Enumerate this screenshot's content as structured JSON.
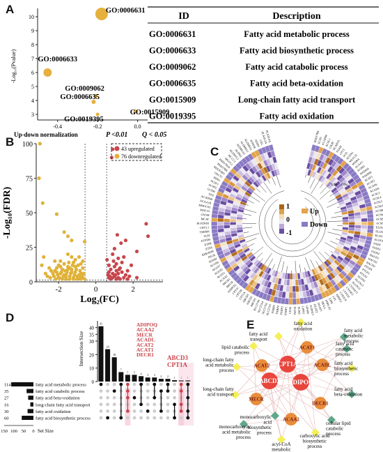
{
  "panels": {
    "A": "A",
    "B": "B",
    "C": "C",
    "D": "D",
    "E": "E"
  },
  "panel_a": {
    "ylabel": "-Log₁₀(Pvalue)",
    "xlabel": "Up-down normalization",
    "footnote_p": "P <0.01",
    "footnote_q": "Q < 0.05",
    "chart_data": {
      "type": "scatter",
      "xlim": [
        -0.5,
        0.05
      ],
      "ylim": [
        2.6,
        10.6
      ],
      "xticks": [
        "-0.4",
        "-0.2",
        "0.0"
      ],
      "yticks": [
        "3",
        "4",
        "5",
        "6",
        "7",
        "8",
        "9",
        "10"
      ],
      "points": [
        {
          "label": "GO:0006631",
          "x": -0.18,
          "y": 10.2,
          "size": 9
        },
        {
          "label": "GO:0006633",
          "x": -0.45,
          "y": 6.0,
          "size": 6
        },
        {
          "label": "GO:0009062",
          "x": -0.21,
          "y": 4.3,
          "size": 3
        },
        {
          "label": "GO:0006635",
          "x": -0.22,
          "y": 3.9,
          "size": 3
        },
        {
          "label": "GO:0019395",
          "x": -0.2,
          "y": 3.0,
          "size": 2.5
        },
        {
          "label": "GO:0015909",
          "x": -0.01,
          "y": 3.2,
          "size": 3
        }
      ]
    },
    "table": {
      "headers": [
        "ID",
        "Description"
      ],
      "rows": [
        [
          "GO:0006631",
          "Fatty acid metabolic process"
        ],
        [
          "GO:0006633",
          "Fatty acid biosynthetic process"
        ],
        [
          "GO:0009062",
          "Fatty acid catabolic process"
        ],
        [
          "GO:0006635",
          "Fatty acid beta-oxidation"
        ],
        [
          "GO:0015909",
          "Long-chain fatty acid transport"
        ],
        [
          "GO:0019395",
          "Fatty acid oxidation"
        ]
      ]
    }
  },
  "panel_b": {
    "chart_data": {
      "type": "scatter",
      "xlabel": "Log₂(FC)",
      "ylabel": "-Log₁₀(FDR)",
      "xlim": [
        -3.2,
        3.6
      ],
      "ylim": [
        0,
        100
      ],
      "xticks": [
        "-2",
        "0",
        "2"
      ],
      "yticks": [
        "0",
        "25",
        "50",
        "75",
        "100"
      ],
      "legend": [
        "43 upregulated",
        "76 downregulated"
      ],
      "colors": {
        "up": "#c8464d",
        "down": "#e0b23a"
      },
      "up_points": [
        [
          0.6,
          16
        ],
        [
          0.7,
          12
        ],
        [
          0.8,
          9
        ],
        [
          0.9,
          6
        ],
        [
          1.0,
          4
        ],
        [
          0.7,
          3
        ],
        [
          1.1,
          2
        ],
        [
          1.2,
          6
        ],
        [
          1.3,
          10
        ],
        [
          1.4,
          14
        ],
        [
          0.9,
          20
        ],
        [
          1.0,
          24
        ],
        [
          1.1,
          8
        ],
        [
          0.65,
          5
        ],
        [
          1.5,
          3
        ],
        [
          0.8,
          2
        ],
        [
          1.6,
          5
        ],
        [
          1.2,
          3
        ],
        [
          0.7,
          7
        ],
        [
          1.0,
          11
        ],
        [
          1.3,
          2
        ],
        [
          1.7,
          2
        ],
        [
          0.9,
          3
        ],
        [
          1.1,
          13
        ],
        [
          1.2,
          17
        ],
        [
          1.4,
          7
        ],
        [
          0.75,
          4
        ],
        [
          1.05,
          5
        ],
        [
          1.25,
          9
        ],
        [
          0.95,
          15
        ],
        [
          1.8,
          4
        ],
        [
          2.2,
          3
        ],
        [
          1.9,
          12
        ],
        [
          2.7,
          42
        ],
        [
          2.8,
          33
        ],
        [
          1.6,
          30
        ],
        [
          1.35,
          28
        ],
        [
          1.15,
          34
        ],
        [
          0.85,
          90
        ],
        [
          0.9,
          96
        ],
        [
          2.2,
          22
        ],
        [
          1.5,
          18
        ],
        [
          1.7,
          8
        ]
      ],
      "down_points": [
        [
          -3.0,
          100
        ],
        [
          -3.05,
          75
        ],
        [
          -2.85,
          57
        ],
        [
          -2.1,
          49
        ],
        [
          -1.7,
          36
        ],
        [
          -1.5,
          33
        ],
        [
          -1.3,
          30
        ],
        [
          -0.6,
          29
        ],
        [
          -2.8,
          18
        ],
        [
          -2.9,
          12
        ],
        [
          -2.5,
          10
        ],
        [
          -2.2,
          8
        ],
        [
          -1.9,
          6
        ],
        [
          -1.6,
          5
        ],
        [
          -1.4,
          4
        ],
        [
          -1.2,
          3
        ],
        [
          -1.0,
          2
        ],
        [
          -0.8,
          2
        ],
        [
          -0.7,
          3
        ],
        [
          -0.9,
          5
        ],
        [
          -1.1,
          7
        ],
        [
          -1.3,
          9
        ],
        [
          -1.5,
          11
        ],
        [
          -1.7,
          13
        ],
        [
          -1.9,
          15
        ],
        [
          -2.1,
          10
        ],
        [
          -2.3,
          6
        ],
        [
          -2.6,
          4
        ],
        [
          -2.0,
          3
        ],
        [
          -1.8,
          2
        ],
        [
          -1.6,
          2
        ],
        [
          -1.4,
          2
        ],
        [
          -1.2,
          2
        ],
        [
          -0.9,
          3
        ],
        [
          -0.75,
          4
        ],
        [
          -0.65,
          6
        ],
        [
          -1.05,
          9
        ],
        [
          -1.25,
          12
        ],
        [
          -1.45,
          14
        ],
        [
          -1.65,
          8
        ],
        [
          -1.85,
          7
        ],
        [
          -2.05,
          5
        ],
        [
          -2.25,
          4
        ],
        [
          -2.45,
          3
        ],
        [
          -0.85,
          8
        ],
        [
          -1.15,
          5
        ],
        [
          -1.35,
          6
        ],
        [
          -1.55,
          7
        ],
        [
          -1.75,
          4
        ],
        [
          -1.95,
          3
        ],
        [
          -2.15,
          2
        ],
        [
          -0.7,
          10
        ],
        [
          -0.95,
          12
        ],
        [
          -1.1,
          16
        ],
        [
          -1.3,
          18
        ],
        [
          -1.5,
          20
        ],
        [
          -1.2,
          14
        ],
        [
          -0.8,
          6
        ],
        [
          -1.0,
          4
        ],
        [
          -1.4,
          10
        ],
        [
          -1.6,
          3
        ],
        [
          -1.8,
          9
        ],
        [
          -2.0,
          12
        ],
        [
          -2.2,
          15
        ],
        [
          -2.4,
          8
        ],
        [
          -2.7,
          6
        ],
        [
          -0.6,
          2
        ],
        [
          -0.7,
          15
        ],
        [
          -0.9,
          18
        ],
        [
          -1.1,
          11
        ],
        [
          -1.3,
          7
        ],
        [
          -1.5,
          9
        ],
        [
          -1.7,
          5
        ],
        [
          -1.9,
          11
        ],
        [
          -2.1,
          7
        ],
        [
          -0.8,
          13
        ]
      ]
    }
  },
  "panel_c": {
    "legend_ticks": [
      "1",
      "0",
      "-1"
    ],
    "legend_up": "Up",
    "legend_down": "Down",
    "inner_labels": [
      "UPs",
      "DNs"
    ],
    "genes": [
      "HSD17B4",
      "ECH1",
      "ACADM",
      "ACSL1",
      "CRAT",
      "ACADVL",
      "FAAH",
      "CPT2",
      "SCD",
      "ACOX1",
      "MLYCD",
      "PPARA",
      "ACAA1",
      "ECHS1",
      "HADHA",
      "HADHB",
      "ACAT1",
      "ACAT2",
      "ACADL",
      "ACADS",
      "ACSL3",
      "ACSL4",
      "ACSL5",
      "ACSL6",
      "ACSM1",
      "ACSM3",
      "ACSBG1",
      "ACSBG2",
      "ELOVL1",
      "ELOVL2",
      "ELOVL5",
      "ELOVL6",
      "FASN",
      "FADS1",
      "FADS2",
      "HACD1",
      "HACD2",
      "HACD3",
      "PTGES",
      "PTGS1",
      "PTGS2",
      "ALOX5",
      "ALOX12",
      "ALOX15",
      "CYP4A11",
      "CYP4F2",
      "CYP2J2",
      "CYP2C8",
      "EPHX2",
      "LPL",
      "LIPE",
      "PNPLA2",
      "MGLL",
      "DGAT1",
      "DGAT2",
      "AGPAT2",
      "GPAM",
      "LPIN1",
      "PLIN1",
      "PLIN2",
      "CD36",
      "FABP1",
      "FABP3",
      "FABP4",
      "FABP5",
      "SLC27A1",
      "SLC27A2",
      "SLC27A4",
      "SLC27A6",
      "ABCD1",
      "ABCD2",
      "ABCD3",
      "CPT1A",
      "CPT1B",
      "CPT1C",
      "ADIPOQ",
      "MECR",
      "DECR1",
      "ACAA2",
      "ACOT1",
      "ACOT2",
      "ACOT7",
      "ACOT8",
      "HADH",
      "PECR",
      "EHHADH",
      "ETFA",
      "ETFB",
      "ETFDH",
      "AUH",
      "THEM4",
      "CRYL1",
      "BCKDHB",
      "MCAT",
      "OXSM",
      "MAT1A",
      "HMGCS2",
      "ACAA1B",
      "ACADSB",
      "IVD",
      "GCDH",
      "ACSF2",
      "ACSF3",
      "BDH1",
      "OXCT1",
      "NDUFAB1",
      "HSD17B8",
      "HSD17B10",
      "MCCC1",
      "MCCC2",
      "ALDH1L2",
      "ALDH2",
      "ALDH3A2",
      "ALDH6A1",
      "ALDH9A1",
      "ADH1B",
      "ADH4",
      "CEL",
      "PLA2G2A",
      "PLA2G4A"
    ]
  },
  "panel_d": {
    "ylabel": "Intersection Size",
    "set_size_label": "Set Size",
    "set_axis_ticks": [
      "150",
      "100",
      "50",
      "0"
    ],
    "y_ticks": [
      "0",
      "10",
      "20",
      "30",
      "35",
      "40"
    ],
    "chart_data": {
      "type": "bar",
      "intersection_values": [
        41,
        24,
        18,
        7,
        5,
        5,
        4,
        3,
        3,
        2,
        2,
        1,
        1,
        1
      ],
      "sets": [
        {
          "name": "fatty acid metabolic process",
          "size": 114
        },
        {
          "name": "fatty acid catabolic process",
          "size": 35
        },
        {
          "name": "fatty acid beta-oxidation",
          "size": 27
        },
        {
          "name": "long-chain fatty acid transport",
          "size": 16
        },
        {
          "name": "fatty acid oxidation",
          "size": 30
        },
        {
          "name": "fatty acid biosynthetic process",
          "size": 60
        }
      ]
    },
    "annot_genes_left": [
      "ADIPOQ",
      "ACAA2",
      "MECR",
      "ACADL",
      "ACAT2",
      "ACAT1",
      "DECR1"
    ],
    "annot_genes_right": [
      "ABCD3",
      "CPT1A"
    ]
  },
  "panel_e": {
    "hubs": [
      "CPT1A",
      "ABCD3",
      "ADIPOQ"
    ],
    "genes": [
      "ACAT1",
      "ACAT2",
      "ACADL",
      "MECR",
      "DECR1",
      "ACAA2"
    ],
    "terms": [
      "fatty acid oxidation",
      "fatty acid metabolic process",
      "fatty acid transport",
      "lipid catabolic process",
      "fatty acid catabolic process",
      "long-chain fatty acid metabolic process",
      "fatty acid biosynthetic process",
      "long-chain fatty acid transport",
      "fatty acid beta-oxidation",
      "monocarboxylic acid biosynthetic process",
      "cellular lipid catabolic process",
      "monocarboxylic acid metabolic process",
      "carboxylic acid biosynthetic process",
      "acyl-CoA metabolic process"
    ],
    "colors": {
      "hub": "#e8453c",
      "gene": "#e98d3b",
      "term": "#f4ef58",
      "term_alt": "#5fa88a",
      "edge": "#e6b8b8"
    }
  }
}
